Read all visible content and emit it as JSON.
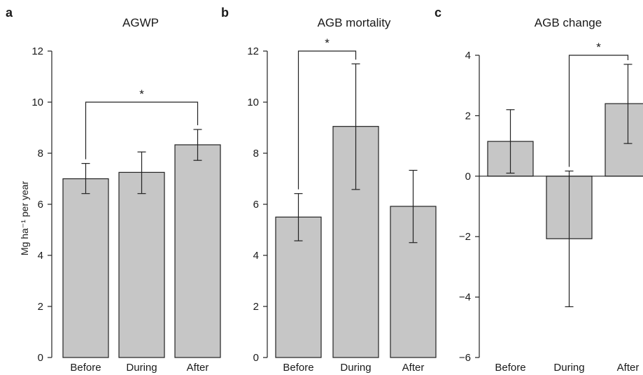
{
  "figure": {
    "ylabel": "Mg ha⁻¹ per year"
  },
  "chart_data": [
    {
      "type": "bar",
      "panel": "a",
      "title": "AGWP",
      "categories": [
        "Before",
        "During",
        "After"
      ],
      "values": [
        7.0,
        7.25,
        8.33
      ],
      "errors": [
        [
          6.42,
          7.6
        ],
        [
          6.42,
          8.05
        ],
        [
          7.72,
          8.93
        ]
      ],
      "ylim": [
        0,
        12
      ],
      "yticks": [
        0,
        2,
        4,
        6,
        8,
        10,
        12
      ],
      "significance": [
        {
          "from": 0,
          "to": 2,
          "label": "*",
          "y": 10.0
        }
      ],
      "color": "#c6c6c6"
    },
    {
      "type": "bar",
      "panel": "b",
      "title": "AGB mortality",
      "categories": [
        "Before",
        "During",
        "After"
      ],
      "values": [
        5.5,
        9.05,
        5.92
      ],
      "errors": [
        [
          4.57,
          6.42
        ],
        [
          6.58,
          11.5
        ],
        [
          4.5,
          7.33
        ]
      ],
      "ylim": [
        0,
        12
      ],
      "yticks": [
        0,
        2,
        4,
        6,
        8,
        10,
        12
      ],
      "significance": [
        {
          "from": 0,
          "to": 1,
          "label": "*",
          "y": 12.0
        }
      ],
      "color": "#c6c6c6"
    },
    {
      "type": "bar",
      "panel": "c",
      "title": "AGB change",
      "categories": [
        "Before",
        "During",
        "After"
      ],
      "values": [
        1.15,
        -2.07,
        2.4
      ],
      "errors": [
        [
          0.1,
          2.2
        ],
        [
          -4.32,
          0.17
        ],
        [
          1.08,
          3.7
        ]
      ],
      "ylim": [
        -6,
        4
      ],
      "yticks": [
        -6,
        -4,
        -2,
        0,
        2,
        4
      ],
      "zero_line": true,
      "significance": [
        {
          "from": 1,
          "to": 2,
          "label": "*",
          "y": 4.0
        }
      ],
      "color": "#c6c6c6"
    }
  ]
}
